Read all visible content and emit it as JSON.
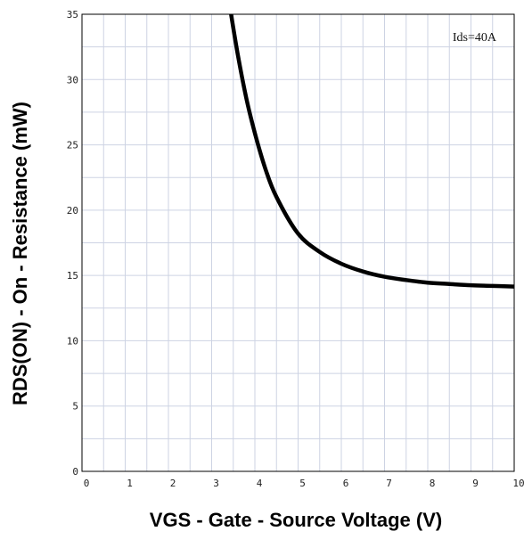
{
  "chart_data": {
    "type": "line",
    "title": "",
    "xlabel": "VGS - Gate - Source Voltage (V)",
    "ylabel": "RDS(ON) - On - Resistance (mW)",
    "xlim": [
      0,
      10
    ],
    "ylim": [
      0,
      35
    ],
    "x_ticks": [
      "0",
      "1",
      "2",
      "3",
      "4",
      "5",
      "6",
      "7",
      "8",
      "9",
      "10"
    ],
    "y_ticks": [
      "0",
      "5",
      "10",
      "15",
      "20",
      "25",
      "30",
      "35"
    ],
    "grid": true,
    "annotation": "Ids=40A",
    "series": [
      {
        "color": "#000000",
        "x": [
          3.45,
          3.6,
          3.8,
          4.0,
          4.25,
          4.5,
          5.0,
          5.5,
          6.0,
          6.5,
          7.0,
          7.5,
          8.0,
          8.5,
          9.0,
          9.5,
          10.0
        ],
        "y": [
          35.0,
          32.0,
          28.6,
          25.9,
          23.1,
          21.0,
          18.2,
          16.8,
          15.9,
          15.3,
          14.9,
          14.65,
          14.45,
          14.35,
          14.25,
          14.2,
          14.15
        ]
      }
    ]
  }
}
